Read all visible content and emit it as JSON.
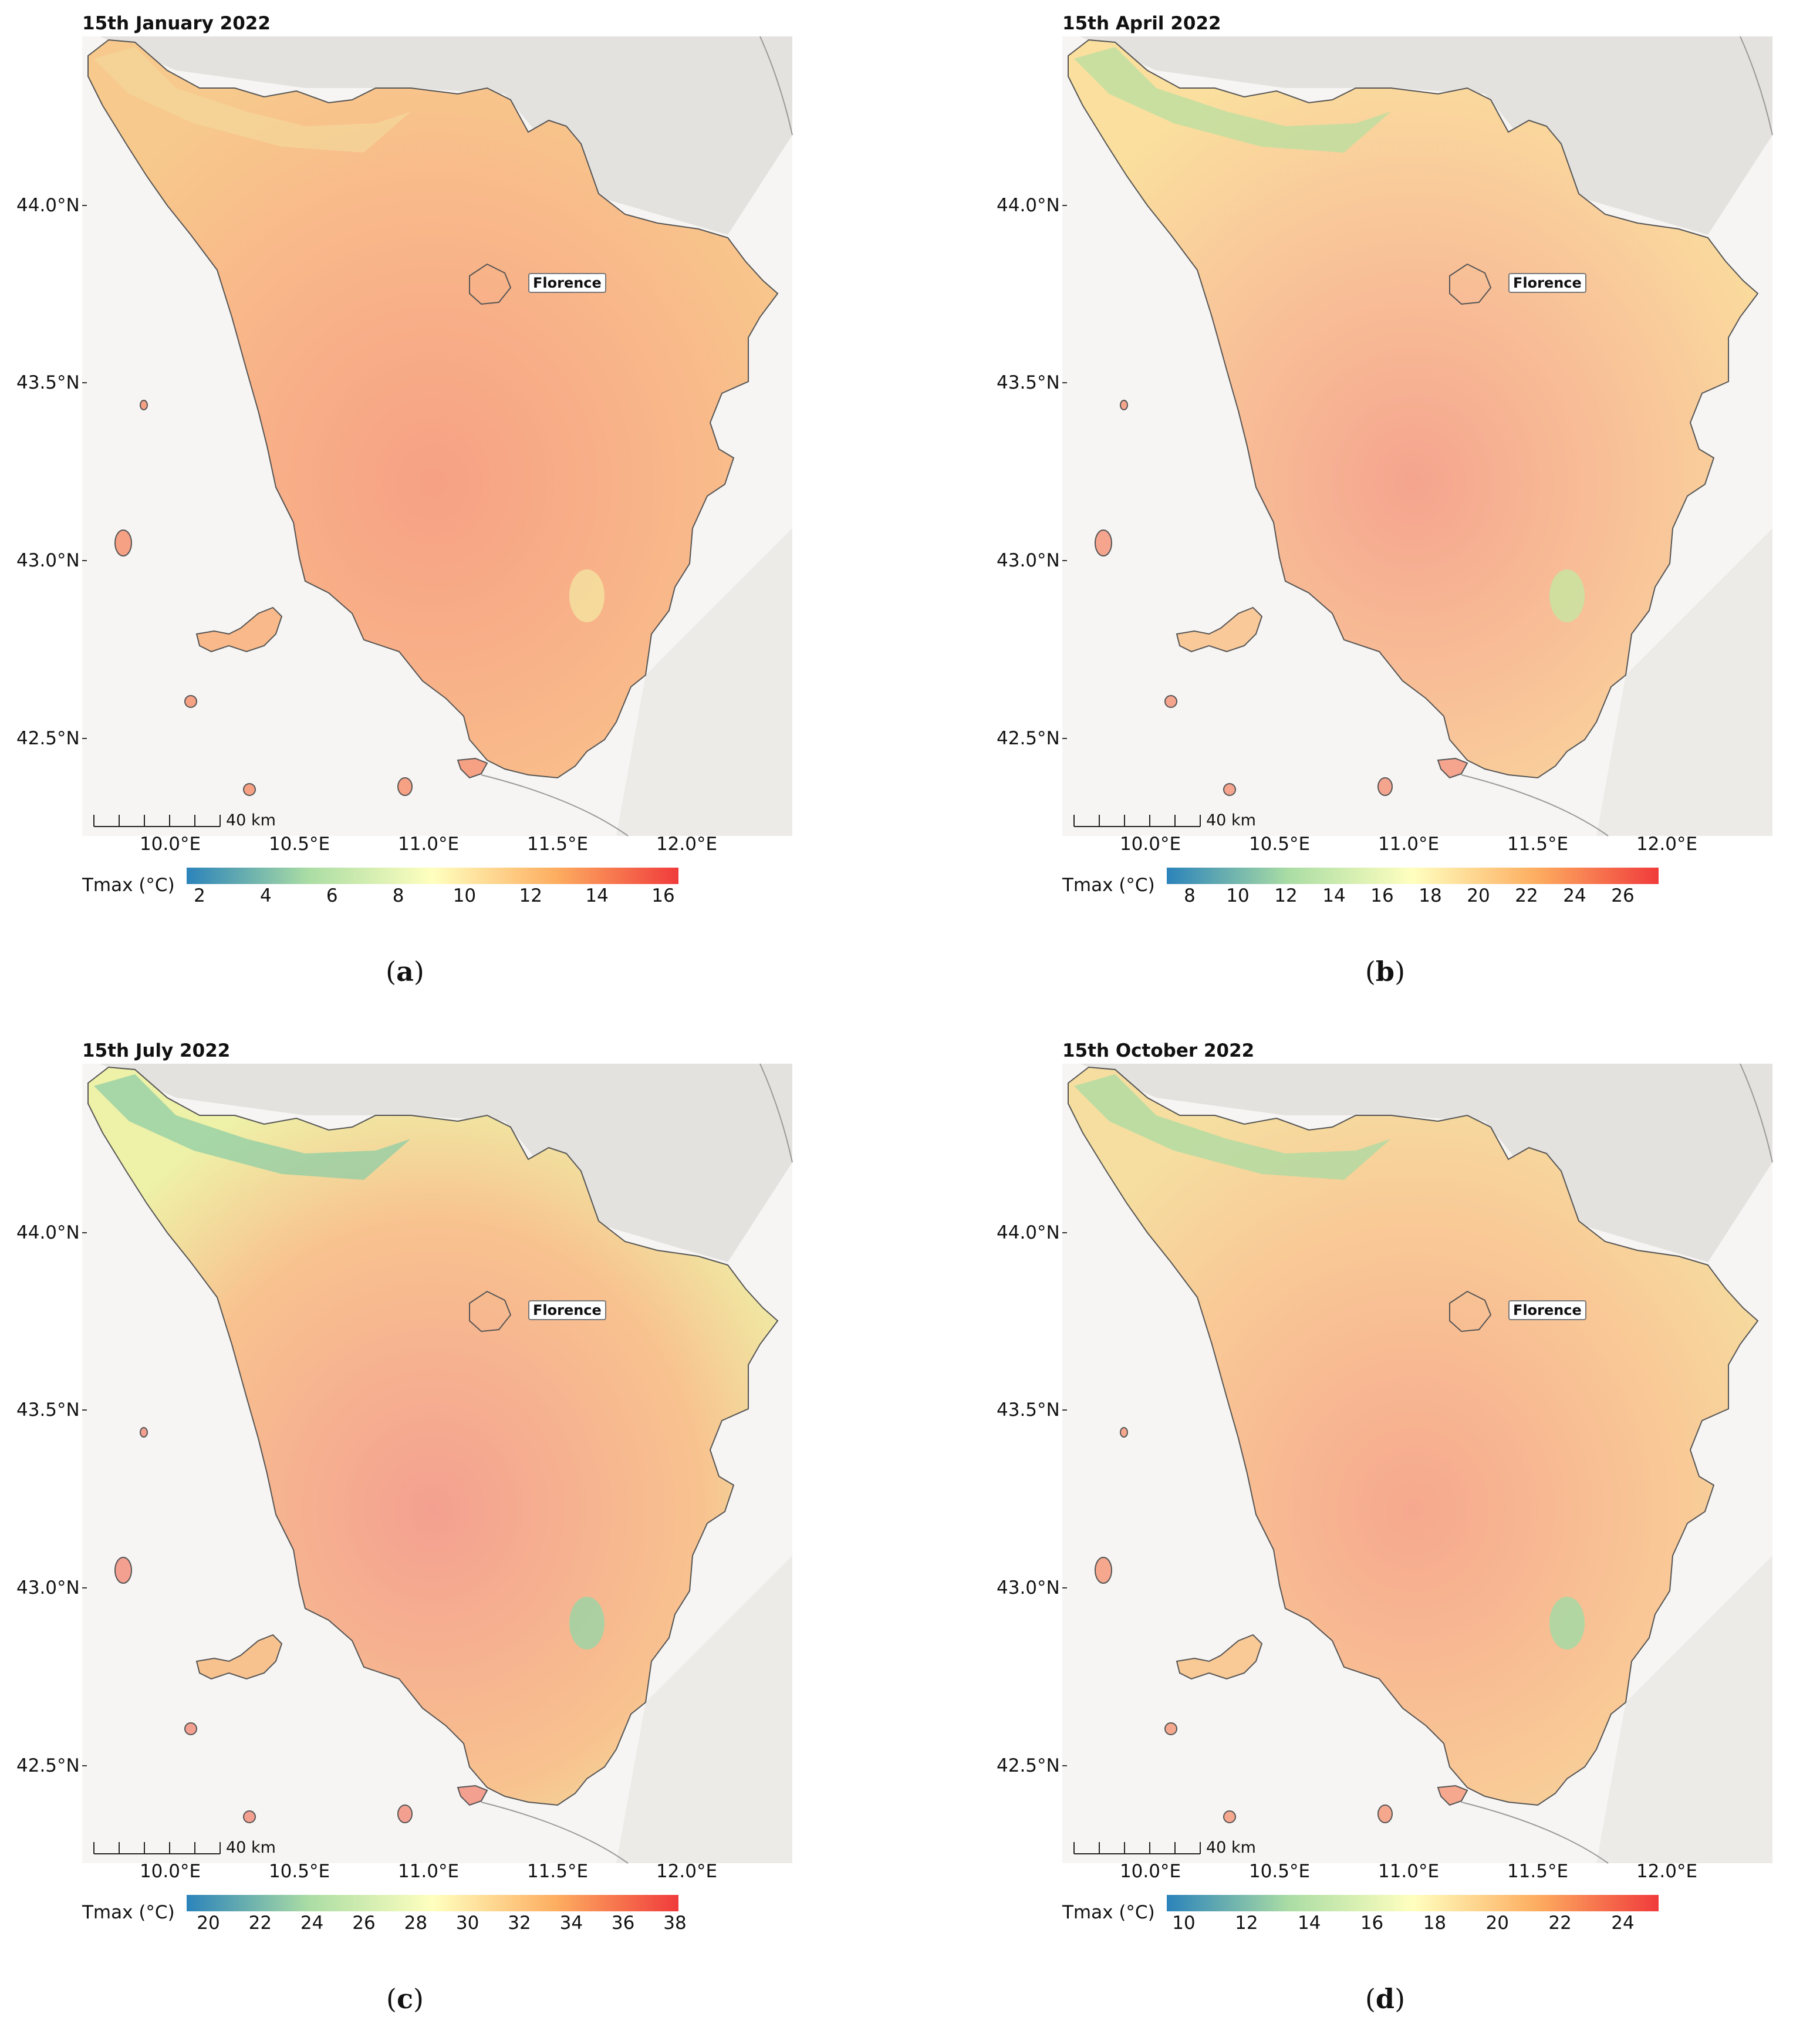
{
  "panels": [
    {
      "title": "15th January 2022",
      "caption_letter": "a",
      "ticks": [
        "2",
        "4",
        "6",
        "8",
        "10",
        "12",
        "14",
        "16"
      ]
    },
    {
      "title": "15th April 2022",
      "caption_letter": "b",
      "ticks": [
        "8",
        "10",
        "12",
        "14",
        "16",
        "18",
        "20",
        "22",
        "24",
        "26"
      ]
    },
    {
      "title": "15th July 2022",
      "caption_letter": "c",
      "ticks": [
        "20",
        "22",
        "24",
        "26",
        "28",
        "30",
        "32",
        "34",
        "36",
        "38"
      ]
    },
    {
      "title": "15th October 2022",
      "caption_letter": "d",
      "ticks": [
        "10",
        "12",
        "14",
        "16",
        "18",
        "20",
        "22",
        "24"
      ]
    }
  ],
  "lat_labels": [
    "44.0°N",
    "43.5°N",
    "43.0°N",
    "42.5°N"
  ],
  "lon_labels": [
    "10.0°E",
    "10.5°E",
    "11.0°E",
    "11.5°E",
    "12.0°E"
  ],
  "city_label": "Florence",
  "scale_bar": "40 km",
  "colorbar_label": "Tmax (°C)",
  "colormap": [
    "#2b83ba",
    "#abdda4",
    "#ffffbf",
    "#fdae61",
    "#f03b3b"
  ]
}
